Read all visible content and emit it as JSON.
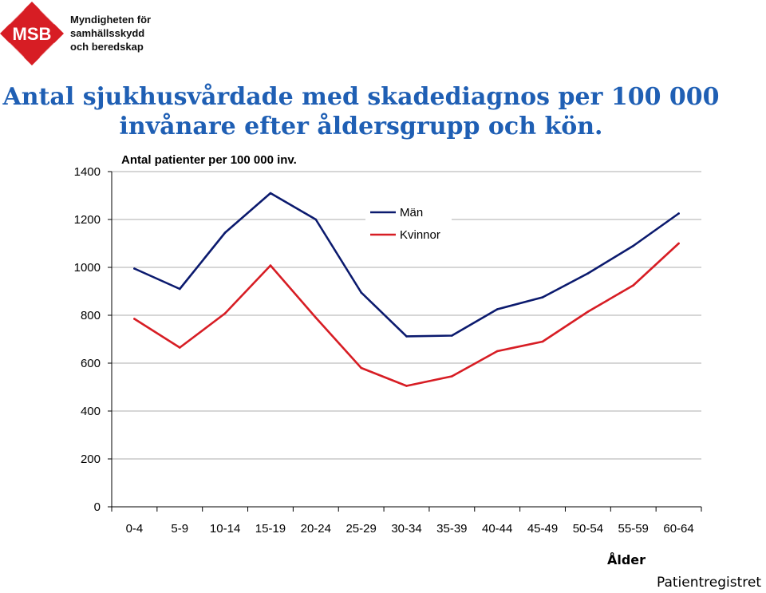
{
  "org": {
    "acronym": "MSB",
    "name_lines": [
      "Myndigheten för",
      "samhällsskydd",
      "och beredskap"
    ]
  },
  "title_lines": [
    "Antal sjukhusvårdade med skadediagnos per 100 000",
    "invånare efter åldersgrupp och kön."
  ],
  "source": "Patientregistret",
  "colors": {
    "title": "#1f5fb4",
    "brand_red": "#d71d24",
    "man": "#0b1a6e",
    "woman": "#d71d24",
    "grid": "#c8c8c8",
    "axis": "#000000"
  },
  "chart_data": {
    "type": "line",
    "ylabel": "Antal patienter per 100 000 inv.",
    "xlabel": "Ålder",
    "ylim": [
      0,
      1400
    ],
    "yticks": [
      0,
      200,
      400,
      600,
      800,
      1000,
      1200,
      1400
    ],
    "grid": true,
    "legend_position": "top-center",
    "categories": [
      "0-4",
      "5-9",
      "10-14",
      "15-19",
      "20-24",
      "25-29",
      "30-34",
      "35-39",
      "40-44",
      "45-49",
      "50-54",
      "55-59",
      "60-64"
    ],
    "series": [
      {
        "name": "Män",
        "color": "#0b1a6e",
        "values": [
          995,
          910,
          1145,
          1310,
          1200,
          895,
          712,
          715,
          825,
          875,
          975,
          1090,
          1225
        ]
      },
      {
        "name": "Kvinnor",
        "color": "#d71d24",
        "values": [
          785,
          665,
          808,
          1008,
          790,
          580,
          505,
          545,
          650,
          690,
          815,
          925,
          1100
        ]
      }
    ]
  }
}
